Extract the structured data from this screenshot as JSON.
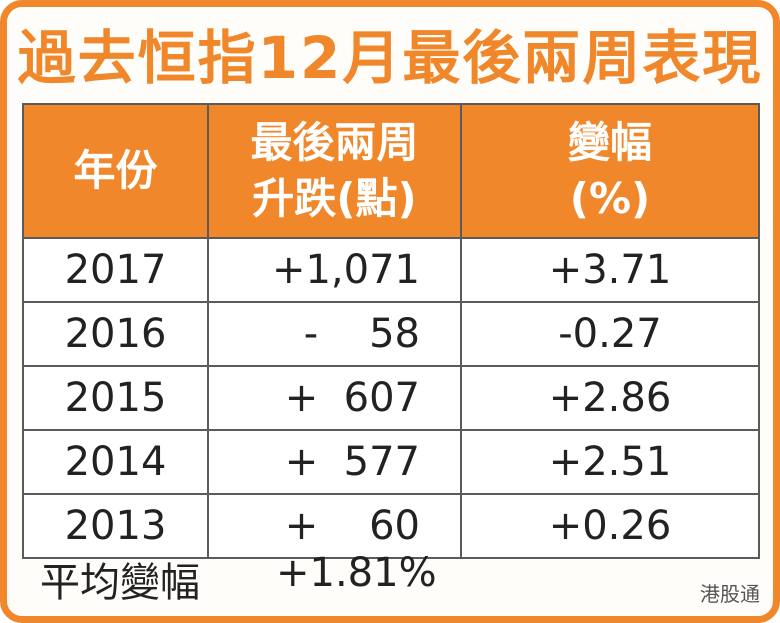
{
  "header": {
    "title": "過去恒指12月最後兩周表現"
  },
  "table": {
    "columns": [
      "年份",
      [
        "最後兩周",
        "升跌(點)"
      ],
      [
        "變幅",
        "(%)"
      ]
    ],
    "rows": [
      [
        "2017",
        "+1,071",
        "+3.71"
      ],
      [
        "2016",
        "-    58",
        "-0.27"
      ],
      [
        "2015",
        "+  607",
        "+2.86"
      ],
      [
        "2014",
        "+  577",
        "+2.51"
      ],
      [
        "2013",
        "+    60",
        "+0.26"
      ]
    ]
  },
  "footer": {
    "label": "平均變幅",
    "value": "+1.81%"
  },
  "watermark": "港股通"
}
